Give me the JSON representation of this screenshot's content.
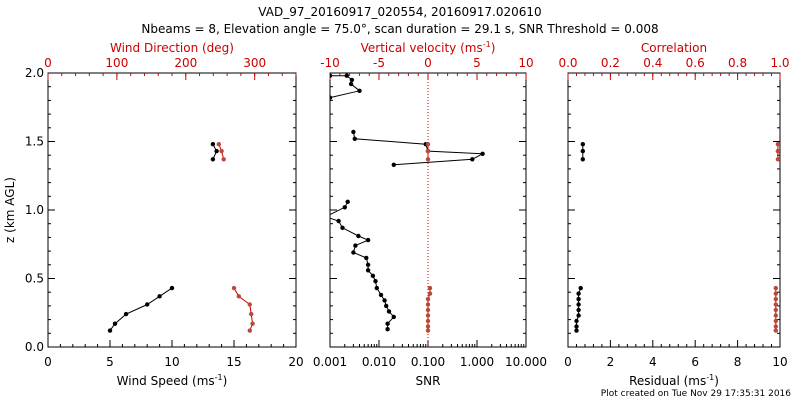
{
  "title_line1": "VAD_97_20160917_020554, 20160917.020610",
  "title_line2": "Nbeams = 8, Elevation angle = 75.0°, scan duration = 29.1 s, SNR Threshold = 0.008",
  "footer": "Plot created on Tue Nov 29 17:35:31 2016",
  "colors": {
    "black": "#000000",
    "red": "#cc0000",
    "marker_red": "#b84a3a"
  },
  "chart_data": [
    {
      "type": "scatter",
      "panel": "wind",
      "ylabel": "z (km AGL)",
      "ylim": [
        0,
        2
      ],
      "yticks": [
        "0.0",
        "0.5",
        "1.0",
        "1.5",
        "2.0"
      ],
      "bottom_axis": {
        "label": "Wind Speed (ms",
        "label_sup": "-1",
        "label_end": ")",
        "lim": [
          0,
          20
        ],
        "ticks": [
          "0",
          "5",
          "10",
          "15",
          "20"
        ]
      },
      "top_axis": {
        "label": "Wind Direction (deg)",
        "lim": [
          0,
          360
        ],
        "ticks": [
          "0",
          "100",
          "200",
          "300"
        ],
        "tick_values": [
          0,
          100,
          200,
          300
        ]
      },
      "series": [
        {
          "axis": "bottom",
          "color": "black",
          "segments": [
            [
              [
                5.0,
                0.12
              ],
              [
                5.4,
                0.17
              ],
              [
                6.3,
                0.24
              ],
              [
                8.0,
                0.31
              ],
              [
                9.0,
                0.37
              ],
              [
                10.0,
                0.43
              ]
            ],
            [
              [
                13.3,
                1.48
              ],
              [
                13.6,
                1.43
              ],
              [
                13.3,
                1.37
              ]
            ]
          ]
        },
        {
          "axis": "top",
          "color": "red",
          "segments": [
            [
              [
                270,
                0.43
              ],
              [
                277,
                0.37
              ],
              [
                293,
                0.31
              ],
              [
                295,
                0.24
              ],
              [
                297,
                0.17
              ],
              [
                293,
                0.12
              ]
            ],
            [
              [
                248,
                1.48
              ],
              [
                252,
                1.43
              ],
              [
                255,
                1.37
              ]
            ]
          ]
        }
      ]
    },
    {
      "type": "line",
      "panel": "snr",
      "bottom_axis": {
        "label": "SNR",
        "scale": "log",
        "lim": [
          0.001,
          10
        ],
        "ticks": [
          "0.001",
          "0.010",
          "0.100",
          "1.000",
          "10.000"
        ]
      },
      "top_axis": {
        "label": "Vertical velocity (ms",
        "label_sup": "-1",
        "label_end": ")",
        "lim": [
          -10,
          10
        ],
        "ticks": [
          "-10",
          "-5",
          "0",
          "5",
          "10"
        ],
        "tick_values": [
          -10,
          -5,
          0,
          5,
          10
        ],
        "zero_line": "dotted"
      },
      "series": [
        {
          "axis": "bottom",
          "color": "black",
          "points": [
            [
              0.001,
              1.98
            ],
            [
              0.0022,
              1.98
            ],
            [
              0.0028,
              1.95
            ],
            [
              0.0027,
              1.92
            ],
            [
              0.004,
              1.87
            ],
            [
              0.001,
              1.82
            ]
          ]
        },
        {
          "axis": "bottom",
          "color": "black",
          "points": [
            [
              0.003,
              1.57
            ],
            [
              0.0032,
              1.52
            ],
            [
              0.09,
              1.48
            ],
            [
              0.1,
              1.43
            ],
            [
              1.3,
              1.41
            ],
            [
              0.8,
              1.37
            ],
            [
              0.02,
              1.33
            ]
          ]
        },
        {
          "axis": "bottom",
          "color": "black",
          "points": [
            [
              0.0023,
              1.06
            ],
            [
              0.002,
              1.02
            ],
            [
              0.0008,
              0.95
            ],
            [
              0.0015,
              0.92
            ],
            [
              0.0018,
              0.87
            ],
            [
              0.0038,
              0.81
            ],
            [
              0.006,
              0.78
            ],
            [
              0.0033,
              0.74
            ],
            [
              0.003,
              0.69
            ],
            [
              0.0055,
              0.65
            ],
            [
              0.006,
              0.6
            ],
            [
              0.006,
              0.56
            ],
            [
              0.0075,
              0.52
            ],
            [
              0.0085,
              0.48
            ],
            [
              0.009,
              0.43
            ],
            [
              0.011,
              0.38
            ],
            [
              0.013,
              0.34
            ],
            [
              0.014,
              0.3
            ],
            [
              0.016,
              0.26
            ],
            [
              0.02,
              0.22
            ],
            [
              0.015,
              0.17
            ],
            [
              0.015,
              0.13
            ]
          ]
        },
        {
          "axis": "top",
          "color": "red",
          "points": [
            [
              0.0,
              1.48
            ],
            [
              0.0,
              1.43
            ],
            [
              0.0,
              1.37
            ]
          ]
        },
        {
          "axis": "top",
          "color": "red",
          "points": [
            [
              0.2,
              0.43
            ],
            [
              0.2,
              0.39
            ],
            [
              0.0,
              0.35
            ],
            [
              0.0,
              0.31
            ],
            [
              0.0,
              0.27
            ],
            [
              0.0,
              0.23
            ],
            [
              0.0,
              0.19
            ],
            [
              0.0,
              0.15
            ],
            [
              0.0,
              0.12
            ]
          ]
        }
      ]
    },
    {
      "type": "line",
      "panel": "residual",
      "bottom_axis": {
        "label": "Residual (ms",
        "label_sup": "-1",
        "label_end": ")",
        "lim": [
          0,
          10
        ],
        "ticks": [
          "0",
          "2",
          "4",
          "6",
          "8",
          "10"
        ]
      },
      "top_axis": {
        "label": "Correlation",
        "lim": [
          0,
          1
        ],
        "ticks": [
          "0.0",
          "0.2",
          "0.4",
          "0.6",
          "0.8",
          "1.0"
        ],
        "tick_values": [
          0,
          0.2,
          0.4,
          0.6,
          0.8,
          1.0
        ]
      },
      "series": [
        {
          "axis": "bottom",
          "color": "black",
          "points": [
            [
              0.7,
              1.48
            ],
            [
              0.7,
              1.43
            ],
            [
              0.7,
              1.37
            ]
          ]
        },
        {
          "axis": "bottom",
          "color": "black",
          "points": [
            [
              0.6,
              0.43
            ],
            [
              0.5,
              0.39
            ],
            [
              0.5,
              0.35
            ],
            [
              0.5,
              0.31
            ],
            [
              0.5,
              0.27
            ],
            [
              0.5,
              0.23
            ],
            [
              0.4,
              0.19
            ],
            [
              0.4,
              0.15
            ],
            [
              0.4,
              0.12
            ]
          ]
        },
        {
          "axis": "top",
          "color": "red",
          "points": [
            [
              0.99,
              1.48
            ],
            [
              0.99,
              1.43
            ],
            [
              0.99,
              1.37
            ]
          ]
        },
        {
          "axis": "top",
          "color": "red",
          "points": [
            [
              0.98,
              0.43
            ],
            [
              0.98,
              0.39
            ],
            [
              0.98,
              0.35
            ],
            [
              0.98,
              0.31
            ],
            [
              0.98,
              0.27
            ],
            [
              0.98,
              0.23
            ],
            [
              0.98,
              0.19
            ],
            [
              0.98,
              0.15
            ],
            [
              0.98,
              0.12
            ]
          ]
        }
      ]
    }
  ]
}
